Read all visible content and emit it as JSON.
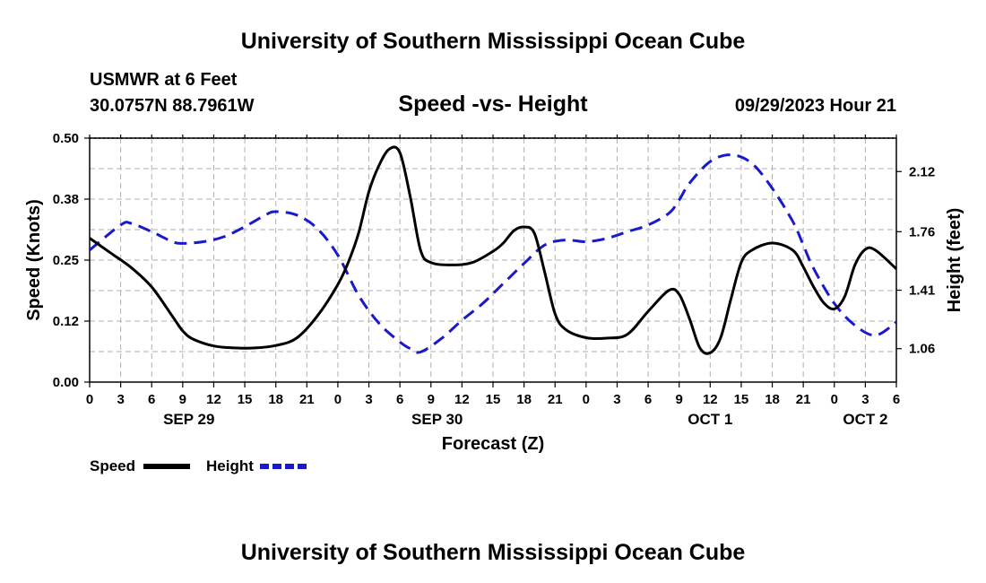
{
  "page": {
    "title_top": "University of Southern Mississippi Ocean Cube",
    "title_bottom": "University of Southern Mississippi Ocean Cube",
    "station": "USMWR at 6 Feet",
    "coords": "30.0757N  88.7961W",
    "date_hour": "09/29/2023 Hour 21"
  },
  "colors": {
    "speed": "#000000",
    "height": "#1a1acc",
    "grid": "#b0b0b0"
  },
  "chart_data": {
    "type": "line",
    "title": "Speed -vs- Height",
    "xlabel": "Forecast (Z)",
    "ylabel": "Speed (Knots)",
    "y2label": "Height (feet)",
    "xlim": [
      0,
      78
    ],
    "ylim": [
      0,
      0.5
    ],
    "y2lim": [
      0.86,
      2.32
    ],
    "x_ticks": [
      0,
      3,
      6,
      9,
      12,
      15,
      18,
      21,
      24,
      27,
      30,
      33,
      36,
      39,
      42,
      45,
      48,
      51,
      54,
      57,
      60,
      63,
      66,
      69,
      72,
      75,
      78
    ],
    "x_tick_labels": [
      "0",
      "3",
      "6",
      "9",
      "12",
      "15",
      "18",
      "21",
      "0",
      "3",
      "6",
      "9",
      "12",
      "15",
      "18",
      "21",
      "0",
      "3",
      "6",
      "9",
      "12",
      "15",
      "18",
      "21",
      "0",
      "3",
      "6"
    ],
    "y_ticks": [
      0,
      0.125,
      0.25,
      0.375,
      0.5
    ],
    "y_tick_labels": [
      "0.00",
      "0.12",
      "0.25",
      "0.38",
      "0.50"
    ],
    "y2_ticks": [
      1.06,
      1.41,
      1.76,
      2.12
    ],
    "y2_tick_labels": [
      "1.06",
      "1.41",
      "1.76",
      "2.12"
    ],
    "date_labels": [
      {
        "x": 9.6,
        "label": "SEP 29"
      },
      {
        "x": 33.6,
        "label": "SEP 30"
      },
      {
        "x": 60.0,
        "label": "OCT 1"
      },
      {
        "x": 75.0,
        "label": "OCT 2"
      }
    ],
    "series": [
      {
        "name": "Speed",
        "axis": "left",
        "style": "solid",
        "x": [
          0,
          2,
          4,
          6,
          8,
          9,
          10,
          12,
          14,
          16,
          18,
          20,
          22,
          24,
          25,
          26,
          27,
          28,
          29,
          30,
          31,
          32,
          33,
          35,
          37,
          39,
          40,
          41,
          42,
          43,
          44,
          45,
          46,
          48,
          50,
          52,
          54,
          56,
          57,
          58,
          59,
          60,
          61,
          62,
          63,
          64,
          66,
          68,
          69,
          70,
          71,
          72,
          73,
          74,
          75,
          76,
          78
        ],
        "values": [
          0.295,
          0.265,
          0.235,
          0.195,
          0.135,
          0.105,
          0.088,
          0.074,
          0.07,
          0.07,
          0.075,
          0.09,
          0.135,
          0.2,
          0.245,
          0.305,
          0.39,
          0.445,
          0.478,
          0.47,
          0.38,
          0.27,
          0.245,
          0.24,
          0.245,
          0.268,
          0.285,
          0.31,
          0.318,
          0.305,
          0.225,
          0.14,
          0.108,
          0.091,
          0.09,
          0.098,
          0.145,
          0.188,
          0.18,
          0.13,
          0.07,
          0.06,
          0.09,
          0.17,
          0.245,
          0.27,
          0.285,
          0.27,
          0.236,
          0.195,
          0.162,
          0.15,
          0.175,
          0.24,
          0.272,
          0.27,
          0.232
        ]
      },
      {
        "name": "Height",
        "axis": "right",
        "style": "dashed",
        "x": [
          0,
          3,
          4,
          6,
          8,
          9,
          11,
          13,
          15,
          17,
          18,
          20,
          22,
          24,
          26,
          28,
          30,
          31,
          32,
          34,
          36,
          38,
          40,
          42,
          44,
          46,
          48,
          50,
          52,
          54,
          56,
          57,
          58,
          60,
          62,
          64,
          66,
          68,
          69,
          70,
          72,
          74,
          76,
          78
        ],
        "values": [
          1.65,
          1.8,
          1.81,
          1.76,
          1.7,
          1.69,
          1.7,
          1.73,
          1.79,
          1.86,
          1.88,
          1.86,
          1.78,
          1.62,
          1.38,
          1.21,
          1.1,
          1.06,
          1.04,
          1.12,
          1.23,
          1.33,
          1.45,
          1.57,
          1.68,
          1.71,
          1.7,
          1.72,
          1.76,
          1.8,
          1.87,
          1.95,
          2.05,
          2.18,
          2.22,
          2.17,
          2.02,
          1.82,
          1.68,
          1.54,
          1.33,
          1.2,
          1.14,
          1.22
        ]
      }
    ],
    "legend": [
      {
        "label": "Speed",
        "series": "Speed"
      },
      {
        "label": "Height",
        "series": "Height"
      }
    ]
  }
}
